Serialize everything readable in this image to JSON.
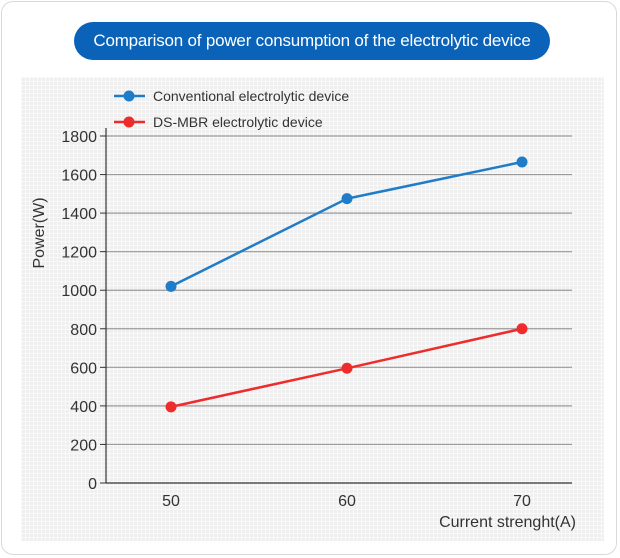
{
  "chart_data": {
    "type": "line",
    "title": "Comparison of power consumption of the electrolytic device",
    "xlabel": "Current strenght(A)",
    "ylabel": "Power(W)",
    "x": [
      50,
      60,
      70
    ],
    "ylim": [
      0,
      1800
    ],
    "yticks": [
      0,
      200,
      400,
      600,
      800,
      1000,
      1200,
      1400,
      1600,
      1800
    ],
    "grid": true,
    "legend_position": "top-left",
    "series": [
      {
        "name": "Conventional electrolytic device",
        "color": "#1f7cc8",
        "values": [
          1020,
          1475,
          1665
        ]
      },
      {
        "name": "DS-MBR electrolytic device",
        "color": "#ee2c2c",
        "values": [
          395,
          595,
          800
        ]
      }
    ]
  }
}
